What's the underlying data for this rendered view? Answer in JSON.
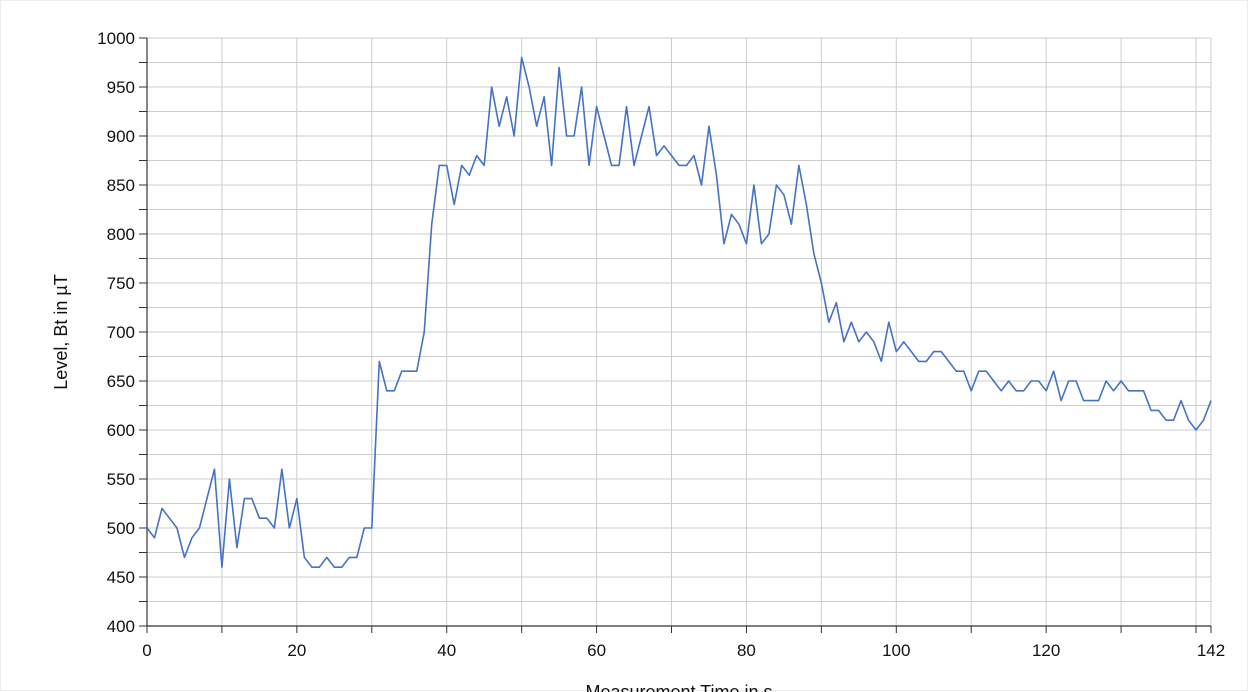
{
  "chart_data": {
    "type": "line",
    "title": "",
    "xlabel": "Measurement Time in s",
    "ylabel": "Level, Bt in µT",
    "xlim": [
      0,
      142
    ],
    "ylim": [
      400,
      1000
    ],
    "x_ticks": [
      0,
      20,
      40,
      60,
      80,
      100,
      120,
      142
    ],
    "y_ticks": [
      400,
      450,
      500,
      550,
      600,
      650,
      700,
      750,
      800,
      850,
      900,
      950,
      1000
    ],
    "grid": true,
    "line_color": "#4472c4",
    "series": [
      {
        "x": [
          0,
          1,
          2,
          3,
          4,
          5,
          6,
          7,
          8,
          9,
          10,
          11,
          12,
          13,
          14,
          15,
          16,
          17,
          18,
          19,
          20,
          21,
          22,
          23,
          24,
          25,
          26,
          27,
          28,
          29,
          30,
          31,
          32,
          33,
          34,
          35,
          36,
          37,
          38,
          39,
          40,
          41,
          42,
          43,
          44,
          45,
          46,
          47,
          48,
          49,
          50,
          51,
          52,
          53,
          54,
          55,
          56,
          57,
          58,
          59,
          60,
          61,
          62,
          63,
          64,
          65,
          66,
          67,
          68,
          69,
          70,
          71,
          72,
          73,
          74,
          75,
          76,
          77,
          78,
          79,
          80,
          81,
          82,
          83,
          84,
          85,
          86,
          87,
          88,
          89,
          90,
          91,
          92,
          93,
          94,
          95,
          96,
          97,
          98,
          99,
          100,
          101,
          102,
          103,
          104,
          105,
          106,
          107,
          108,
          109,
          110,
          111,
          112,
          113,
          114,
          115,
          116,
          117,
          118,
          119,
          120,
          121,
          122,
          123,
          124,
          125,
          126,
          127,
          128,
          129,
          130,
          131,
          132,
          133,
          134,
          135,
          136,
          137,
          138,
          139,
          140,
          141,
          142
        ],
        "values": [
          500,
          490,
          520,
          510,
          500,
          470,
          490,
          500,
          530,
          560,
          460,
          550,
          480,
          530,
          530,
          510,
          510,
          500,
          560,
          500,
          530,
          470,
          460,
          460,
          470,
          460,
          460,
          470,
          470,
          500,
          500,
          670,
          640,
          640,
          660,
          660,
          660,
          700,
          810,
          870,
          870,
          830,
          870,
          860,
          880,
          870,
          950,
          910,
          940,
          900,
          980,
          950,
          910,
          940,
          870,
          970,
          900,
          900,
          950,
          870,
          930,
          900,
          870,
          870,
          930,
          870,
          900,
          930,
          880,
          890,
          880,
          870,
          870,
          880,
          850,
          910,
          860,
          790,
          820,
          810,
          790,
          850,
          790,
          800,
          850,
          840,
          810,
          870,
          830,
          780,
          750,
          710,
          730,
          690,
          710,
          690,
          700,
          690,
          670,
          710,
          680,
          690,
          680,
          670,
          670,
          680,
          680,
          670,
          660,
          660,
          640,
          660,
          660,
          650,
          640,
          650,
          640,
          640,
          650,
          650,
          640,
          660,
          630,
          650,
          650,
          630,
          630,
          630,
          650,
          640,
          650,
          640,
          640,
          640,
          620,
          620,
          610,
          610,
          630,
          610,
          600,
          610,
          630
        ]
      }
    ]
  }
}
